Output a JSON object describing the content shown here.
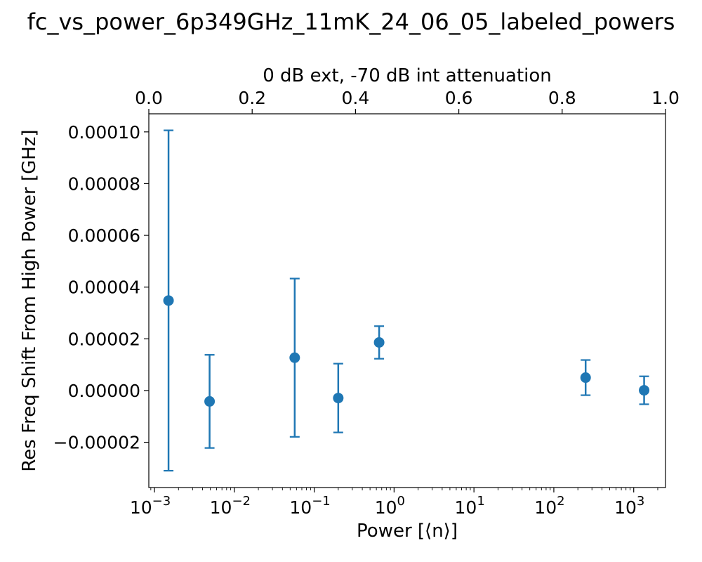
{
  "chart_data": {
    "type": "scatter",
    "title": "fc_vs_power_6p349GHz_11mK_24_06_05_labeled_powers",
    "xlabel": "Power [⟨n⟩]",
    "ylabel": "Res Freq Shift From High Power [GHz]",
    "top_xlabel": "0 dB ext, -70 dB int attenuation",
    "x_scale": "log",
    "xlim": [
      0.00085,
      2500
    ],
    "ylim": [
      -3.75e-05,
      0.000107
    ],
    "top_xlim": [
      0,
      1
    ],
    "grid": false,
    "color": "#1f77b4",
    "x_tick_labels": [
      {
        "base": "10",
        "exp": "−3",
        "value": 0.001
      },
      {
        "base": "10",
        "exp": "−2",
        "value": 0.01
      },
      {
        "base": "10",
        "exp": "−1",
        "value": 0.1
      },
      {
        "base": "10",
        "exp": "0",
        "value": 1
      },
      {
        "base": "10",
        "exp": "1",
        "value": 10
      },
      {
        "base": "10",
        "exp": "2",
        "value": 100
      },
      {
        "base": "10",
        "exp": "3",
        "value": 1000
      }
    ],
    "y_ticks": [
      {
        "label": "−0.00002",
        "value": -2e-05
      },
      {
        "label": "0.00000",
        "value": 0
      },
      {
        "label": "0.00002",
        "value": 2e-05
      },
      {
        "label": "0.00004",
        "value": 4e-05
      },
      {
        "label": "0.00006",
        "value": 6e-05
      },
      {
        "label": "0.00008",
        "value": 8e-05
      },
      {
        "label": "0.00010",
        "value": 0.0001
      }
    ],
    "top_ticks": [
      {
        "label": "0.0",
        "value": 0.0
      },
      {
        "label": "0.2",
        "value": 0.2
      },
      {
        "label": "0.4",
        "value": 0.4
      },
      {
        "label": "0.6",
        "value": 0.6
      },
      {
        "label": "0.8",
        "value": 0.8
      },
      {
        "label": "1.0",
        "value": 1.0
      }
    ],
    "points": [
      {
        "x": 0.0015,
        "y": 3.48e-05,
        "yerr": 6.58e-05
      },
      {
        "x": 0.0049,
        "y": -4.2e-06,
        "yerr": 1.8e-05
      },
      {
        "x": 0.057,
        "y": 1.27e-05,
        "yerr": 3.06e-05
      },
      {
        "x": 0.2,
        "y": -2.9e-06,
        "yerr": 1.33e-05
      },
      {
        "x": 0.65,
        "y": 1.86e-05,
        "yerr": 6.3e-06
      },
      {
        "x": 250,
        "y": 5e-06,
        "yerr": 6.8e-06
      },
      {
        "x": 1350,
        "y": 1e-07,
        "yerr": 5.4e-06
      }
    ]
  }
}
